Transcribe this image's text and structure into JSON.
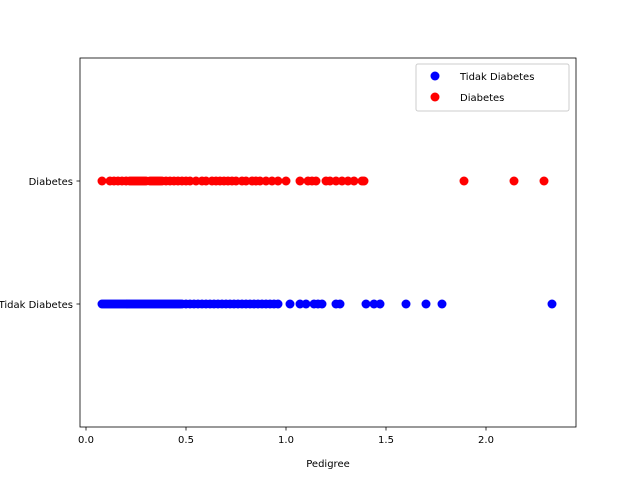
{
  "chart_data": {
    "type": "scatter",
    "title": "",
    "xlabel": "Pedigree",
    "ylabel": "",
    "xlim": [
      -0.03,
      2.45
    ],
    "x_ticks": [
      0.0,
      0.5,
      1.0,
      1.5,
      2.0
    ],
    "x_tick_labels": [
      "0.0",
      "0.5",
      "1.0",
      "1.5",
      "2.0"
    ],
    "y_categories": [
      "Tidak Diabetes",
      "Diabetes"
    ],
    "y_tick_labels": [
      "Tidak Diabetes",
      "Diabetes"
    ],
    "grid": false,
    "legend_position": "top-right",
    "series": [
      {
        "name": "Tidak Diabetes",
        "category": "Tidak Diabetes",
        "color": "#0000ff",
        "x": [
          0.08,
          0.09,
          0.1,
          0.11,
          0.12,
          0.13,
          0.14,
          0.15,
          0.16,
          0.17,
          0.18,
          0.19,
          0.2,
          0.21,
          0.22,
          0.23,
          0.24,
          0.25,
          0.26,
          0.27,
          0.28,
          0.29,
          0.3,
          0.31,
          0.32,
          0.33,
          0.34,
          0.35,
          0.36,
          0.37,
          0.38,
          0.39,
          0.4,
          0.41,
          0.42,
          0.43,
          0.44,
          0.45,
          0.46,
          0.47,
          0.48,
          0.5,
          0.52,
          0.54,
          0.56,
          0.58,
          0.6,
          0.62,
          0.64,
          0.66,
          0.68,
          0.7,
          0.72,
          0.74,
          0.76,
          0.78,
          0.8,
          0.82,
          0.84,
          0.86,
          0.88,
          0.9,
          0.92,
          0.94,
          0.96,
          1.02,
          1.07,
          1.1,
          1.14,
          1.16,
          1.18,
          1.25,
          1.27,
          1.4,
          1.44,
          1.47,
          1.6,
          1.7,
          1.78,
          2.33
        ]
      },
      {
        "name": "Diabetes",
        "category": "Diabetes",
        "color": "#ff0000",
        "x": [
          0.08,
          0.12,
          0.14,
          0.16,
          0.18,
          0.2,
          0.22,
          0.23,
          0.24,
          0.25,
          0.26,
          0.27,
          0.28,
          0.29,
          0.3,
          0.32,
          0.33,
          0.34,
          0.35,
          0.36,
          0.37,
          0.38,
          0.4,
          0.42,
          0.44,
          0.46,
          0.48,
          0.5,
          0.52,
          0.55,
          0.58,
          0.6,
          0.63,
          0.65,
          0.67,
          0.69,
          0.71,
          0.73,
          0.75,
          0.78,
          0.8,
          0.83,
          0.85,
          0.87,
          0.9,
          0.93,
          0.96,
          1.0,
          1.07,
          1.11,
          1.13,
          1.15,
          1.2,
          1.22,
          1.25,
          1.28,
          1.31,
          1.34,
          1.38,
          1.39,
          1.89,
          2.14,
          2.29
        ]
      }
    ]
  }
}
